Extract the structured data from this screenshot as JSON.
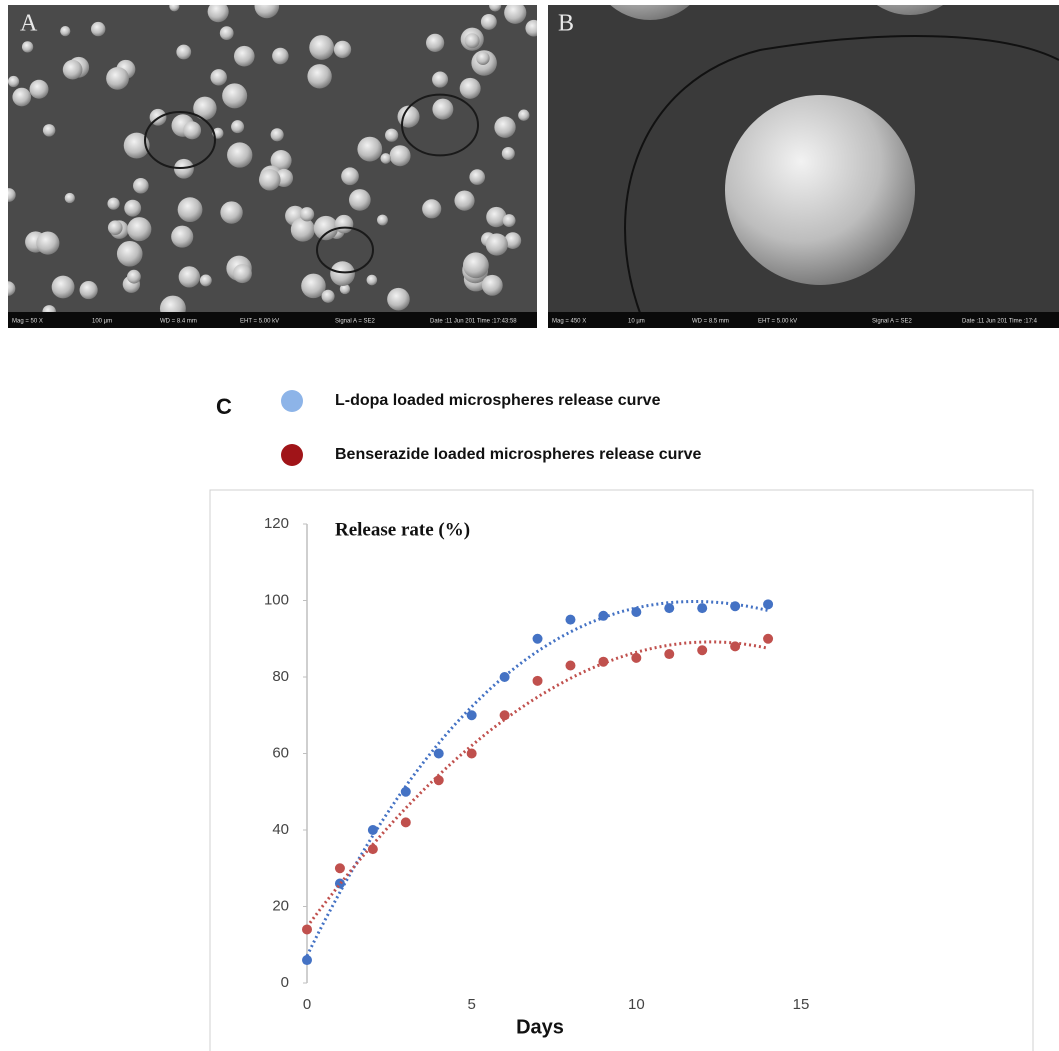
{
  "panels": [
    {
      "label": "A",
      "info": [
        "Mag =   50 X",
        "100 µm",
        "WD =  8.4 mm",
        "EHT =  5.00 kV",
        "Signal A = SE2",
        "Date :11 Jun 201  Time :17:43:58"
      ]
    },
    {
      "label": "B",
      "info": [
        "Mag =  450 X",
        "10 µm",
        "WD =  8.5 mm",
        "EHT =  5.00 kV",
        "Signal A = SE2",
        "Date :11 Jun 201  Time :17:4"
      ]
    }
  ],
  "chart_data": {
    "type": "scatter",
    "panel_label": "C",
    "title": "Release rate (%)",
    "x_label": "Days",
    "x": [
      0,
      1,
      2,
      3,
      4,
      5,
      6,
      7,
      8,
      9,
      10,
      11,
      12,
      13,
      14
    ],
    "series": [
      {
        "name": "L-dopa loaded microspheres release curve",
        "color": "#4472c4",
        "legend_color": "#8db4e8",
        "values": [
          6,
          26,
          40,
          50,
          60,
          70,
          80,
          90,
          95,
          96,
          97,
          98,
          98,
          98.5,
          99
        ]
      },
      {
        "name": "Benserazide loaded microspheres release curve",
        "color": "#c0504d",
        "legend_color": "#a01418",
        "values": [
          14,
          30,
          35,
          42,
          53,
          60,
          70,
          79,
          83,
          84,
          85,
          86,
          87,
          88,
          90
        ]
      }
    ],
    "trendline": "polynomial",
    "xlim": [
      0,
      15
    ],
    "xticks": [
      0,
      5,
      10,
      15
    ],
    "ylim": [
      0,
      120
    ],
    "yticks": [
      0,
      20,
      40,
      60,
      80,
      100,
      120
    ],
    "legend": "top",
    "grid": false
  }
}
